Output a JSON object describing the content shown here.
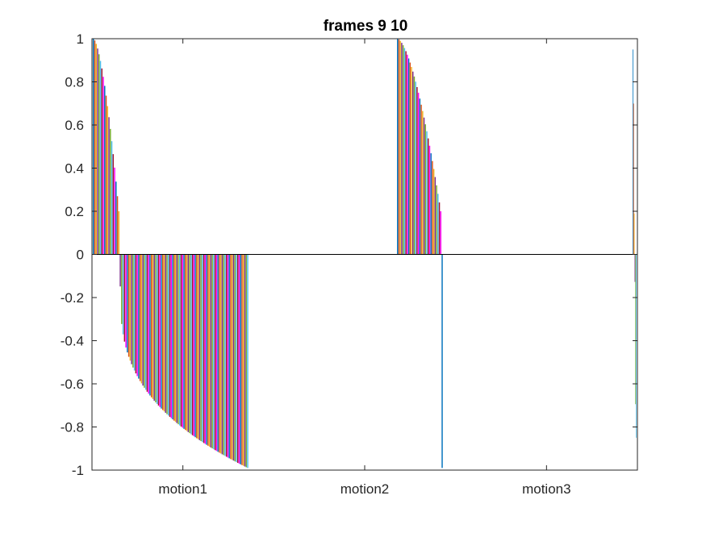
{
  "chart_data": {
    "type": "bar",
    "title": "frames 9 10",
    "xlabel": "",
    "ylabel": "",
    "ylim": [
      -1,
      1
    ],
    "yticks": [
      "-1",
      "-0.8",
      "-0.6",
      "-0.4",
      "-0.2",
      "0",
      "0.2",
      "0.4",
      "0.6",
      "0.8",
      "1"
    ],
    "categories": [
      "motion1",
      "motion2",
      "motion3"
    ],
    "grid": false,
    "series_colors": [
      "#0072BD",
      "#D95319",
      "#EDB120",
      "#7E2F8E",
      "#77AC30",
      "#4DBEEE",
      "#A2142F",
      "#FF00FF"
    ],
    "groups": [
      {
        "category": "motion1",
        "count": 110,
        "positive_count": 19,
        "max_value": 1.0,
        "min_value": -0.99
      },
      {
        "category": "motion2",
        "count": 33,
        "positive_count": 32,
        "max_value": 1.0,
        "min_value": -0.99
      },
      {
        "category": "motion3",
        "count": 6,
        "positive_count": 3,
        "max_value": 0.95,
        "min_value": -0.85
      }
    ]
  }
}
